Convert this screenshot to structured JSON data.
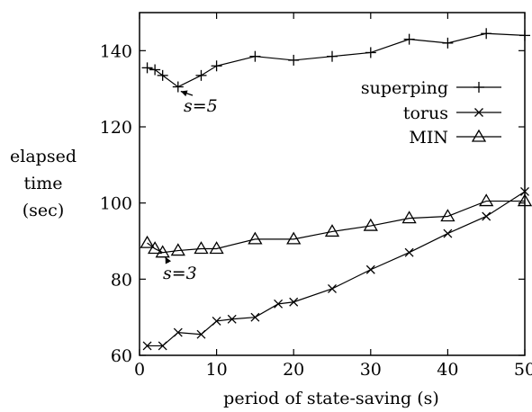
{
  "chart_data": {
    "type": "line",
    "xlabel": "period of state-saving (s)",
    "ylabel_lines": [
      "elapsed",
      "time",
      "(sec)"
    ],
    "xlim": [
      0,
      50
    ],
    "ylim": [
      60,
      150
    ],
    "xticks": [
      0,
      10,
      20,
      30,
      40,
      50
    ],
    "yticks": [
      60,
      80,
      100,
      120,
      140
    ],
    "legend_position": "right",
    "grid": false,
    "series": [
      {
        "name": "superping",
        "marker": "plus",
        "x": [
          1,
          2,
          3,
          5,
          8,
          10,
          15,
          20,
          25,
          30,
          35,
          40,
          45,
          50
        ],
        "y": [
          135.5,
          135,
          133.5,
          130.5,
          133.5,
          136,
          138.5,
          137.5,
          138.5,
          139.5,
          143,
          142,
          144.5,
          144
        ]
      },
      {
        "name": "torus",
        "marker": "cross",
        "x": [
          1,
          3,
          5,
          8,
          10,
          12,
          15,
          18,
          20,
          25,
          30,
          35,
          40,
          45,
          50
        ],
        "y": [
          62.5,
          62.5,
          66,
          65.5,
          69,
          69.5,
          70,
          73.5,
          74,
          77.5,
          82.5,
          87,
          92,
          96.5,
          103
        ]
      },
      {
        "name": "MIN",
        "marker": "triangle",
        "x": [
          1,
          2,
          3,
          5,
          8,
          10,
          15,
          20,
          25,
          30,
          35,
          40,
          45,
          50
        ],
        "y": [
          89.5,
          88,
          87,
          87.5,
          88,
          88,
          90.5,
          90.5,
          92.5,
          94,
          96,
          96.5,
          100.5,
          100.5
        ]
      }
    ],
    "annotations": [
      {
        "text": "s=5",
        "point": [
          5,
          130.5
        ]
      },
      {
        "text": "s=3",
        "point": [
          3,
          87
        ]
      }
    ]
  }
}
